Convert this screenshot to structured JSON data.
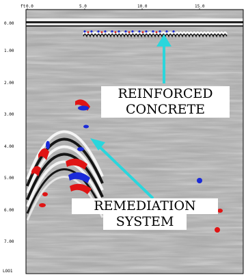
{
  "header": {
    "corner": "ft"
  },
  "x_ticks": [
    "0.0",
    "5.0",
    "10.0",
    "15.0"
  ],
  "y_ticks": [
    "0.00",
    "1.00",
    "2.00",
    "3.00",
    "4.00",
    "5.00",
    "6.00",
    "7.00"
  ],
  "y_unit": "LOO1",
  "annotations": {
    "rebar": {
      "line1": "REINFORCED",
      "line2": "CONCRETE"
    },
    "remediation": {
      "line1": "REMEDIATION",
      "line2": "SYSTEM"
    }
  },
  "colors": {
    "arrow": "#2ad6dc",
    "positive": "#e01414",
    "negative": "#1a2ad8"
  }
}
